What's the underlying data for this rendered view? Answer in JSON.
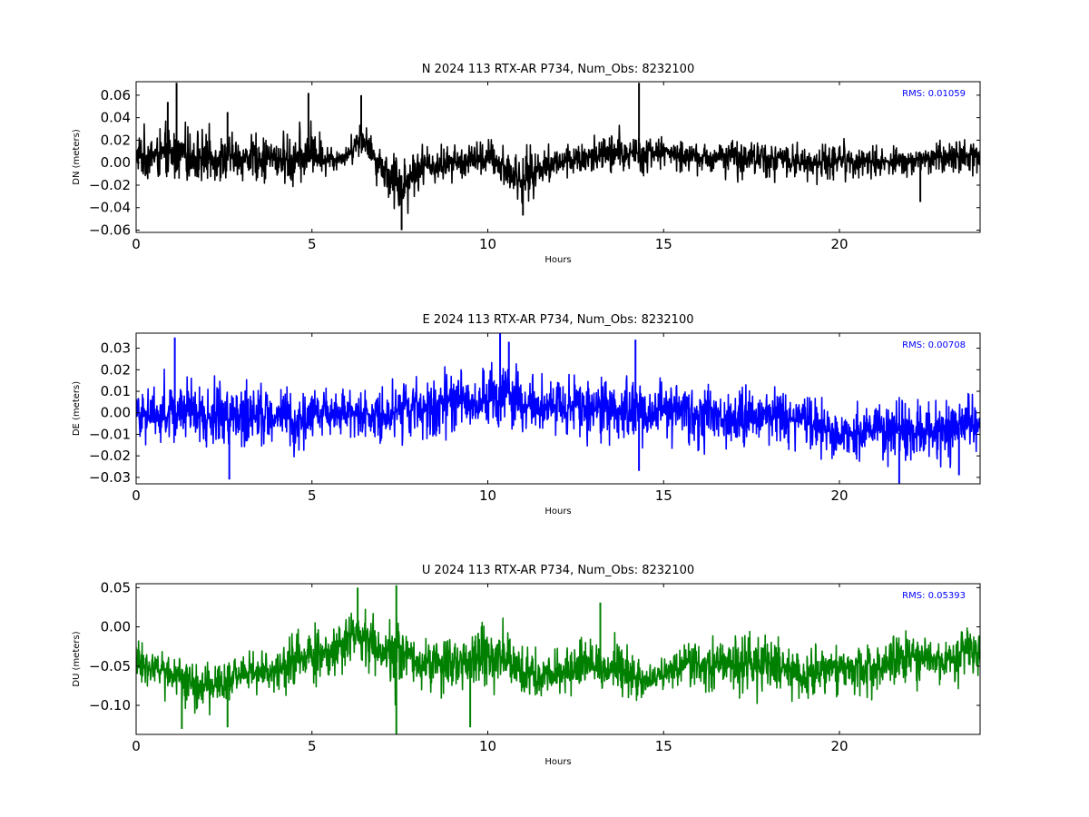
{
  "chart_data": [
    {
      "type": "line",
      "title": "N 2024 113 RTX-AR  P734, Num_Obs: 8232100",
      "xlabel": "Hours",
      "ylabel": "DN (meters)",
      "xlim": [
        0,
        24
      ],
      "ylim": [
        -0.062,
        0.072
      ],
      "xticks": [
        0,
        5,
        10,
        15,
        20
      ],
      "xtick_labels": [
        "0",
        "5",
        "10",
        "15",
        "20"
      ],
      "yticks": [
        -0.06,
        -0.04,
        -0.02,
        0.0,
        0.02,
        0.04,
        0.06
      ],
      "ytick_labels": [
        "−0.06",
        "−0.04",
        "−0.02",
        "0.00",
        "0.02",
        "0.04",
        "0.06"
      ],
      "color": "#000000",
      "annotation": "RMS:  0.01059",
      "annotation_color": "#0000ff",
      "grid": false,
      "envelope": {
        "x": [
          0,
          1,
          2,
          3,
          4,
          4.5,
          5,
          5.5,
          6,
          6.4,
          6.8,
          7.2,
          7.6,
          8,
          9,
          10,
          10.5,
          11,
          11.5,
          12,
          13,
          14,
          14.5,
          15,
          16,
          17,
          18,
          19,
          20,
          21,
          22,
          23,
          24
        ],
        "center": [
          0.005,
          0.008,
          0.005,
          0.004,
          0.004,
          0.003,
          0.008,
          0.003,
          0.006,
          0.025,
          0.005,
          -0.01,
          -0.022,
          -0.005,
          0.0,
          0.004,
          -0.005,
          -0.018,
          -0.005,
          0.0,
          0.005,
          0.008,
          0.01,
          0.01,
          0.004,
          0.006,
          0.004,
          0.0,
          0.003,
          0.0,
          0.002,
          0.005,
          0.008
        ],
        "upper": [
          0.035,
          0.04,
          0.035,
          0.033,
          0.03,
          0.035,
          0.045,
          0.02,
          0.02,
          0.048,
          0.02,
          0.015,
          0.03,
          0.025,
          0.02,
          0.028,
          0.025,
          0.018,
          0.022,
          0.025,
          0.03,
          0.04,
          0.03,
          0.025,
          0.02,
          0.025,
          0.025,
          0.02,
          0.025,
          0.02,
          0.015,
          0.025,
          0.03
        ],
        "lower": [
          -0.02,
          -0.025,
          -0.025,
          -0.02,
          -0.025,
          -0.035,
          -0.02,
          -0.015,
          -0.005,
          0.0,
          -0.02,
          -0.045,
          -0.058,
          -0.03,
          -0.02,
          -0.02,
          -0.035,
          -0.045,
          -0.025,
          -0.02,
          -0.02,
          -0.018,
          -0.015,
          -0.01,
          -0.015,
          -0.02,
          -0.02,
          -0.02,
          -0.02,
          -0.02,
          -0.015,
          -0.015,
          -0.015
        ],
        "spikes": [
          [
            1.15,
            0.071
          ],
          [
            0.9,
            0.054
          ],
          [
            4.9,
            0.062
          ],
          [
            6.4,
            0.06
          ],
          [
            7.55,
            -0.06
          ],
          [
            14.3,
            0.071
          ],
          [
            2.6,
            0.045
          ],
          [
            11.0,
            -0.047
          ],
          [
            22.3,
            -0.035
          ]
        ]
      }
    },
    {
      "type": "line",
      "title": "E 2024 113 RTX-AR  P734, Num_Obs: 8232100",
      "xlabel": "Hours",
      "ylabel": "DE (meters)",
      "xlim": [
        0,
        24
      ],
      "ylim": [
        -0.033,
        0.037
      ],
      "xticks": [
        0,
        5,
        10,
        15,
        20
      ],
      "xtick_labels": [
        "0",
        "5",
        "10",
        "15",
        "20"
      ],
      "yticks": [
        -0.03,
        -0.02,
        -0.01,
        0.0,
        0.01,
        0.02,
        0.03
      ],
      "ytick_labels": [
        "−0.03",
        "−0.02",
        "−0.01",
        "0.00",
        "0.01",
        "0.02",
        "0.03"
      ],
      "color": "#0000ff",
      "annotation": "RMS:  0.00708",
      "annotation_color": "#0000ff",
      "grid": false,
      "envelope": {
        "x": [
          0,
          1,
          2,
          3,
          4,
          4.5,
          5,
          6,
          7,
          8,
          9,
          10,
          10.5,
          11,
          12,
          13,
          14,
          15,
          16,
          17,
          18,
          19,
          19.5,
          20,
          21,
          22,
          23,
          24
        ],
        "center": [
          -0.002,
          0.0,
          -0.002,
          -0.003,
          0.0,
          -0.005,
          -0.001,
          0.0,
          -0.001,
          0.003,
          0.006,
          0.005,
          0.01,
          0.003,
          0.004,
          0.002,
          0.002,
          0.001,
          0.0,
          -0.003,
          0.0,
          -0.005,
          -0.008,
          -0.01,
          -0.008,
          -0.01,
          -0.008,
          -0.005
        ],
        "upper": [
          0.015,
          0.025,
          0.022,
          0.018,
          0.016,
          0.012,
          0.015,
          0.016,
          0.015,
          0.022,
          0.025,
          0.027,
          0.033,
          0.02,
          0.025,
          0.02,
          0.022,
          0.018,
          0.015,
          0.015,
          0.017,
          0.013,
          0.008,
          0.005,
          0.008,
          0.012,
          0.012,
          0.016
        ],
        "lower": [
          -0.018,
          -0.018,
          -0.02,
          -0.022,
          -0.018,
          -0.025,
          -0.015,
          -0.015,
          -0.018,
          -0.015,
          -0.015,
          -0.012,
          -0.01,
          -0.018,
          -0.015,
          -0.018,
          -0.018,
          -0.02,
          -0.022,
          -0.022,
          -0.02,
          -0.027,
          -0.025,
          -0.025,
          -0.026,
          -0.028,
          -0.028,
          -0.02
        ],
        "spikes": [
          [
            1.1,
            0.035
          ],
          [
            10.35,
            0.037
          ],
          [
            10.6,
            0.033
          ],
          [
            14.2,
            0.034
          ],
          [
            2.65,
            -0.031
          ],
          [
            14.3,
            -0.027
          ],
          [
            21.7,
            -0.033
          ],
          [
            23.4,
            -0.029
          ]
        ]
      }
    },
    {
      "type": "line",
      "title": "U 2024 113 RTX-AR  P734, Num_Obs: 8232100",
      "xlabel": "Hours",
      "ylabel": "DU (meters)",
      "xlim": [
        0,
        24
      ],
      "ylim": [
        -0.137,
        0.055
      ],
      "xticks": [
        0,
        5,
        10,
        15,
        20
      ],
      "xtick_labels": [
        "0",
        "5",
        "10",
        "15",
        "20"
      ],
      "yticks": [
        -0.1,
        -0.05,
        0.0,
        0.05
      ],
      "ytick_labels": [
        "−0.10",
        "−0.05",
        "0.00",
        "0.05"
      ],
      "color": "#008000",
      "annotation": "RMS:  0.05393",
      "annotation_color": "#0000ff",
      "grid": false,
      "envelope": {
        "x": [
          0,
          1,
          1.5,
          2,
          2.5,
          3,
          4,
          5,
          5.5,
          6,
          6.5,
          7,
          7.5,
          8,
          9,
          10,
          10.5,
          11,
          12,
          13,
          14,
          14.5,
          15,
          16,
          17,
          18,
          19,
          20,
          21,
          22,
          23,
          24
        ],
        "center": [
          -0.045,
          -0.06,
          -0.07,
          -0.075,
          -0.075,
          -0.06,
          -0.055,
          -0.035,
          -0.03,
          -0.01,
          -0.015,
          -0.03,
          -0.025,
          -0.045,
          -0.045,
          -0.035,
          -0.045,
          -0.06,
          -0.06,
          -0.05,
          -0.06,
          -0.07,
          -0.06,
          -0.045,
          -0.05,
          -0.045,
          -0.065,
          -0.05,
          -0.055,
          -0.035,
          -0.045,
          -0.02
        ],
        "upper": [
          -0.005,
          -0.03,
          -0.035,
          -0.035,
          -0.04,
          -0.025,
          -0.015,
          0.03,
          0.015,
          0.04,
          0.035,
          0.01,
          0.045,
          -0.015,
          0.005,
          0.015,
          0.02,
          -0.015,
          -0.02,
          0.01,
          -0.015,
          -0.035,
          -0.03,
          -0.005,
          0.005,
          0.0,
          -0.02,
          -0.015,
          -0.01,
          0.0,
          -0.005,
          0.015
        ],
        "lower": [
          -0.08,
          -0.1,
          -0.12,
          -0.12,
          -0.115,
          -0.095,
          -0.09,
          -0.085,
          -0.085,
          -0.07,
          -0.06,
          -0.085,
          -0.11,
          -0.085,
          -0.1,
          -0.095,
          -0.085,
          -0.09,
          -0.095,
          -0.09,
          -0.095,
          -0.1,
          -0.085,
          -0.085,
          -0.1,
          -0.11,
          -0.105,
          -0.095,
          -0.095,
          -0.085,
          -0.09,
          -0.07
        ],
        "spikes": [
          [
            6.3,
            0.05
          ],
          [
            7.4,
            0.053
          ],
          [
            7.4,
            -0.137
          ],
          [
            1.3,
            -0.13
          ],
          [
            2.6,
            -0.128
          ],
          [
            9.5,
            -0.128
          ],
          [
            13.2,
            0.031
          ]
        ]
      }
    }
  ]
}
